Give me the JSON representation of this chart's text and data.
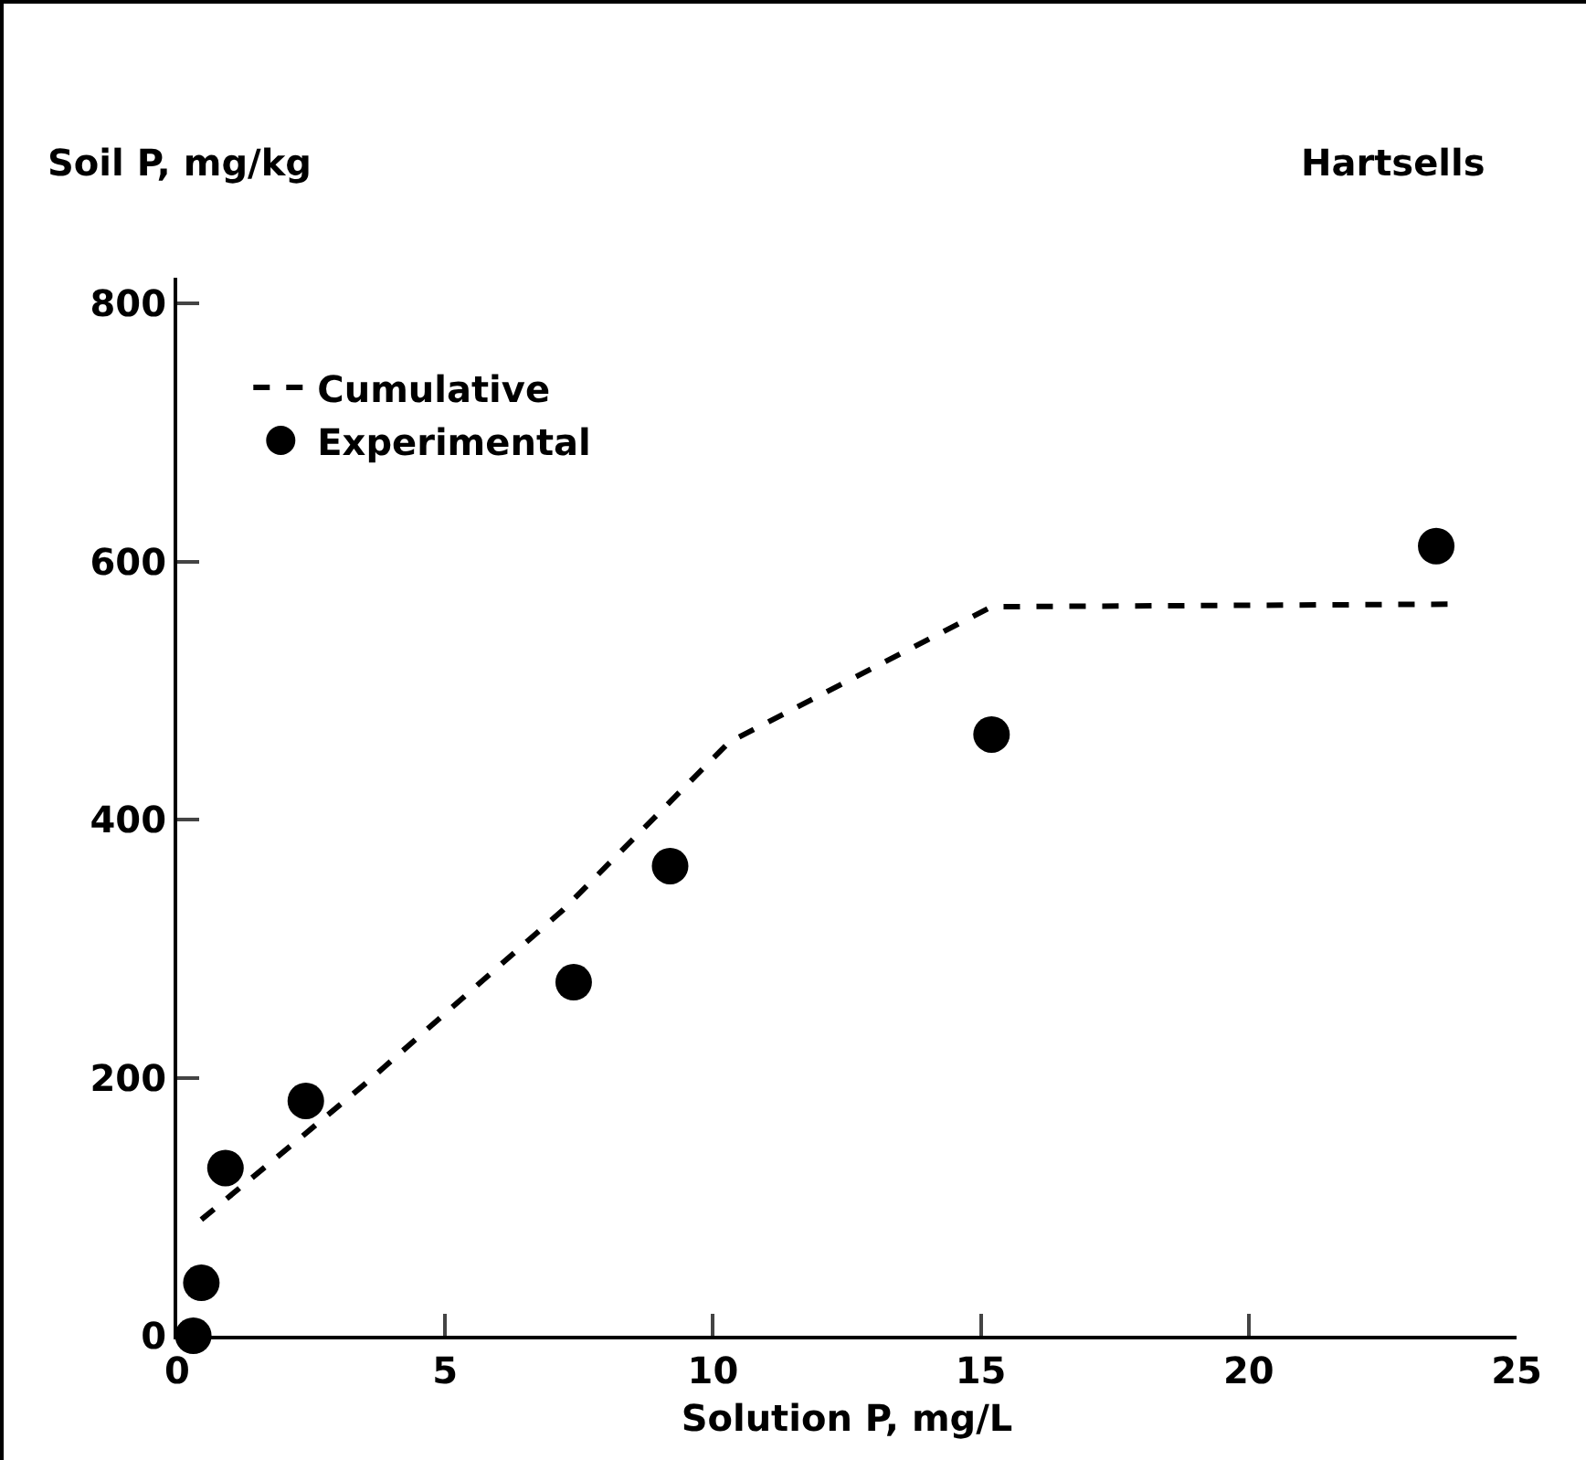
{
  "chart_data": {
    "type": "scatter",
    "xlabel": "Solution P, mg/L",
    "ylabel": "Soil P, mg/kg",
    "annotations": [
      "Hartsells"
    ],
    "series": [
      {
        "name": "Cumulative",
        "type": "line",
        "line_style": "dashed",
        "marker": "none",
        "color": "#000000",
        "x": [
          0.45,
          2.2,
          3.5,
          7.2,
          10.3,
          15.2,
          23.8
        ],
        "values": [
          90,
          150,
          195,
          330,
          460,
          565,
          567
        ]
      },
      {
        "name": "Experimental",
        "marker": "circle",
        "color": "#000000",
        "x": [
          0.3,
          0.45,
          0.9,
          2.4,
          7.4,
          9.2,
          15.2,
          23.5
        ],
        "values": [
          0,
          41,
          130,
          182,
          274,
          364,
          466,
          612
        ]
      }
    ],
    "xlim": [
      0,
      25
    ],
    "xticks": [
      0,
      5,
      10,
      15,
      20,
      25
    ],
    "ylim": [
      0,
      820
    ],
    "yticks": [
      0,
      200,
      400,
      600,
      800
    ],
    "grid": false,
    "legend": "top left"
  }
}
